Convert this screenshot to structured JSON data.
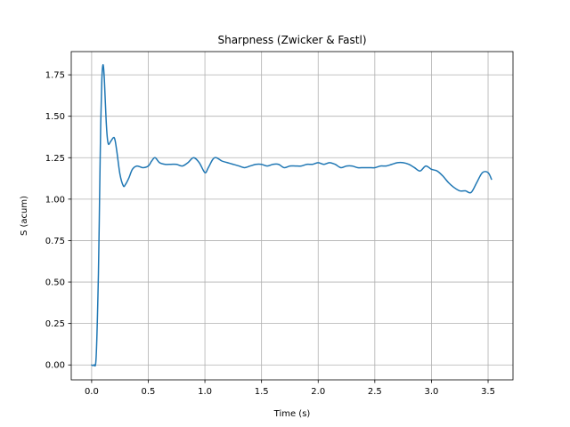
{
  "chart_data": {
    "type": "line",
    "title": "Sharpness (Zwicker & Fastl)",
    "xlabel": "Time (s)",
    "ylabel": "S (acum)",
    "xlim": [
      -0.18,
      3.72
    ],
    "ylim": [
      -0.09,
      1.89
    ],
    "grid": true,
    "x_ticks": [
      0.0,
      0.5,
      1.0,
      1.5,
      2.0,
      2.5,
      3.0,
      3.5
    ],
    "x_tick_labels": [
      "0.0",
      "0.5",
      "1.0",
      "1.5",
      "2.0",
      "2.5",
      "3.0",
      "3.5"
    ],
    "y_ticks": [
      0.0,
      0.25,
      0.5,
      0.75,
      1.0,
      1.25,
      1.5,
      1.75
    ],
    "y_tick_labels": [
      "0.00",
      "0.25",
      "0.50",
      "0.75",
      "1.00",
      "1.25",
      "1.50",
      "1.75"
    ],
    "series_color": "#1f77b4",
    "series": [
      {
        "x": [
          0.0,
          0.02,
          0.04,
          0.06,
          0.07,
          0.08,
          0.09,
          0.1,
          0.11,
          0.12,
          0.13,
          0.14,
          0.15,
          0.17,
          0.2,
          0.22,
          0.25,
          0.28,
          0.3,
          0.33,
          0.36,
          0.4,
          0.45,
          0.5,
          0.53,
          0.56,
          0.6,
          0.65,
          0.7,
          0.75,
          0.8,
          0.85,
          0.9,
          0.95,
          1.0,
          1.03,
          1.07,
          1.1,
          1.15,
          1.2,
          1.25,
          1.3,
          1.35,
          1.4,
          1.45,
          1.5,
          1.55,
          1.6,
          1.65,
          1.7,
          1.75,
          1.8,
          1.85,
          1.9,
          1.95,
          2.0,
          2.05,
          2.1,
          2.15,
          2.2,
          2.25,
          2.3,
          2.35,
          2.4,
          2.45,
          2.5,
          2.55,
          2.6,
          2.65,
          2.7,
          2.75,
          2.8,
          2.85,
          2.9,
          2.95,
          3.0,
          3.05,
          3.1,
          3.15,
          3.2,
          3.25,
          3.3,
          3.35,
          3.4,
          3.45,
          3.5,
          3.53
        ],
        "values": [
          0.0,
          0.0,
          0.05,
          0.55,
          1.0,
          1.45,
          1.72,
          1.81,
          1.75,
          1.6,
          1.45,
          1.36,
          1.33,
          1.35,
          1.37,
          1.3,
          1.15,
          1.08,
          1.09,
          1.13,
          1.18,
          1.2,
          1.19,
          1.2,
          1.23,
          1.25,
          1.22,
          1.21,
          1.21,
          1.21,
          1.2,
          1.22,
          1.25,
          1.22,
          1.16,
          1.19,
          1.24,
          1.25,
          1.23,
          1.22,
          1.21,
          1.2,
          1.19,
          1.2,
          1.21,
          1.21,
          1.2,
          1.21,
          1.21,
          1.19,
          1.2,
          1.2,
          1.2,
          1.21,
          1.21,
          1.22,
          1.21,
          1.22,
          1.21,
          1.19,
          1.2,
          1.2,
          1.19,
          1.19,
          1.19,
          1.19,
          1.2,
          1.2,
          1.21,
          1.22,
          1.22,
          1.21,
          1.19,
          1.17,
          1.2,
          1.18,
          1.17,
          1.14,
          1.1,
          1.07,
          1.05,
          1.05,
          1.04,
          1.1,
          1.16,
          1.16,
          1.12
        ]
      }
    ]
  }
}
